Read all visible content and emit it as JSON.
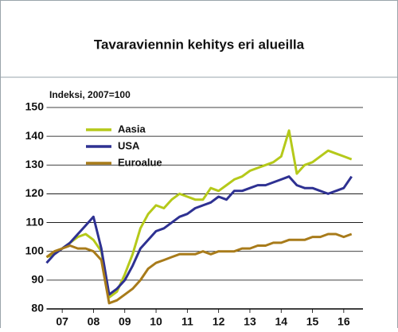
{
  "chart_data": {
    "type": "line",
    "title": "Tavaraviennin kehitys eri alueilla",
    "y_label": "Indeksi, 2007=100",
    "x": [
      2007,
      2007.25,
      2007.5,
      2007.75,
      2008,
      2008.25,
      2008.5,
      2008.75,
      2009,
      2009.25,
      2009.5,
      2009.75,
      2010,
      2010.25,
      2010.5,
      2010.75,
      2011,
      2011.25,
      2011.5,
      2011.75,
      2012,
      2012.25,
      2012.5,
      2012.75,
      2013,
      2013.25,
      2013.5,
      2013.75,
      2014,
      2014.25,
      2014.5,
      2014.75,
      2015,
      2015.25,
      2015.5,
      2015.75,
      2016,
      2016.25,
      2016.5,
      2016.75
    ],
    "series": [
      {
        "name": "Aasia",
        "color": "#b5c91a",
        "values": [
          98,
          99,
          101,
          103,
          105,
          106,
          104,
          100,
          84,
          86,
          92,
          99,
          108,
          113,
          116,
          115,
          118,
          120,
          119,
          118,
          118,
          122,
          121,
          123,
          125,
          126,
          128,
          129,
          130,
          131,
          133,
          142,
          127,
          130,
          131,
          133,
          135,
          134,
          133,
          132
        ]
      },
      {
        "name": "USA",
        "color": "#2e3192",
        "values": [
          96,
          99,
          101,
          103,
          106,
          109,
          112,
          101,
          85,
          87,
          90,
          95,
          101,
          104,
          107,
          108,
          110,
          112,
          113,
          115,
          116,
          117,
          119,
          118,
          121,
          121,
          122,
          123,
          123,
          124,
          125,
          126,
          123,
          122,
          122,
          121,
          120,
          121,
          122,
          126
        ]
      },
      {
        "name": "Euroalue",
        "color": "#a87b1a",
        "values": [
          98,
          100,
          101,
          102,
          101,
          101,
          100,
          97,
          82,
          83,
          85,
          87,
          90,
          94,
          96,
          97,
          98,
          99,
          99,
          99,
          100,
          99,
          100,
          100,
          100,
          101,
          101,
          102,
          102,
          103,
          103,
          104,
          104,
          104,
          105,
          105,
          106,
          106,
          105,
          106
        ]
      }
    ],
    "xlim": [
      2007,
      2017
    ],
    "xticks": [
      {
        "value": 2007.5,
        "label": "07"
      },
      {
        "value": 2008.5,
        "label": "08"
      },
      {
        "value": 2009.5,
        "label": "09"
      },
      {
        "value": 2010.5,
        "label": "10"
      },
      {
        "value": 2011.5,
        "label": "11"
      },
      {
        "value": 2012.5,
        "label": "12"
      },
      {
        "value": 2013.5,
        "label": "13"
      },
      {
        "value": 2014.5,
        "label": "14"
      },
      {
        "value": 2015.5,
        "label": "15"
      },
      {
        "value": 2016.5,
        "label": "16"
      }
    ],
    "ylim": [
      80,
      150
    ],
    "yticks": [
      80,
      90,
      100,
      110,
      120,
      130,
      140,
      150
    ],
    "grid": true
  }
}
